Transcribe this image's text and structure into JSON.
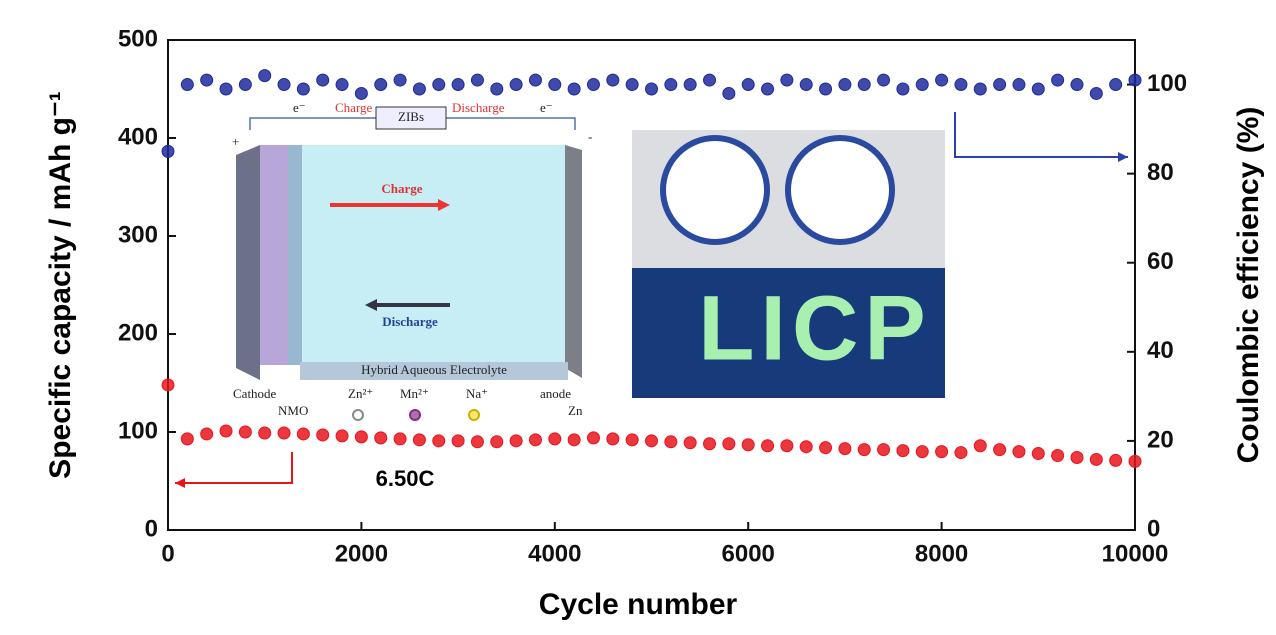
{
  "chart_data": {
    "type": "scatter",
    "x_label": "Cycle number",
    "y_label": "Specific capacity / mAh g⁻¹",
    "y2_label": "Coulombic efficiency (%)",
    "annotation": "6.50C",
    "x": [
      0,
      200,
      400,
      600,
      800,
      1000,
      1200,
      1400,
      1600,
      1800,
      2000,
      2200,
      2400,
      2600,
      2800,
      3000,
      3200,
      3400,
      3600,
      3800,
      4000,
      4200,
      4400,
      4600,
      4800,
      5000,
      5200,
      5400,
      5600,
      5800,
      6000,
      6200,
      6400,
      6600,
      6800,
      7000,
      7200,
      7400,
      7600,
      7800,
      8000,
      8200,
      8400,
      8600,
      8800,
      9000,
      9200,
      9400,
      9600,
      9800,
      10000
    ],
    "series": [
      {
        "color": "#e8141c",
        "values": [
          148,
          93,
          98,
          101,
          100,
          99,
          99,
          98,
          97,
          96,
          95,
          94,
          93,
          92,
          91,
          91,
          90,
          90,
          91,
          92,
          93,
          92,
          94,
          93,
          92,
          91,
          90,
          89,
          88,
          88,
          87,
          86,
          86,
          85,
          84,
          83,
          82,
          82,
          81,
          80,
          80,
          79,
          86,
          82,
          80,
          78,
          76,
          74,
          72,
          71,
          70
        ]
      },
      {
        "color": "#1d2a9c",
        "axis": "y2",
        "values": [
          85,
          100,
          101,
          99,
          100,
          102,
          100,
          99,
          101,
          100,
          98,
          100,
          101,
          99,
          100,
          100,
          101,
          99,
          100,
          101,
          100,
          99,
          100,
          101,
          100,
          99,
          100,
          100,
          101,
          98,
          100,
          99,
          101,
          100,
          99,
          100,
          100,
          101,
          99,
          100,
          101,
          100,
          99,
          100,
          100,
          99,
          101,
          100,
          98,
          100,
          101
        ]
      }
    ],
    "xlim": [
      0,
      10000
    ],
    "xticks": [
      0,
      2000,
      4000,
      6000,
      8000,
      10000
    ],
    "ylim": [
      0,
      500
    ],
    "yticks": [
      0,
      100,
      200,
      300,
      400,
      500
    ],
    "y2lim": [
      0,
      110
    ],
    "y2ticks": [
      0,
      20,
      40,
      60,
      80,
      100
    ]
  },
  "insets": {
    "schematic": {
      "title": "ZIBs",
      "charge": "Charge",
      "discharge": "Discharge",
      "electrolyte": "Hybrid Aqueous Electrolyte",
      "cathode": "Cathode",
      "nmo": "NMO",
      "anode": "anode",
      "zn": "Zn",
      "zn_ion": "Zn²⁺",
      "mn_ion": "Mn²⁺",
      "na_ion": "Na⁺",
      "plus": "+",
      "minus": "-",
      "electron": "e⁻"
    },
    "photo": {
      "display": "LICP"
    }
  }
}
